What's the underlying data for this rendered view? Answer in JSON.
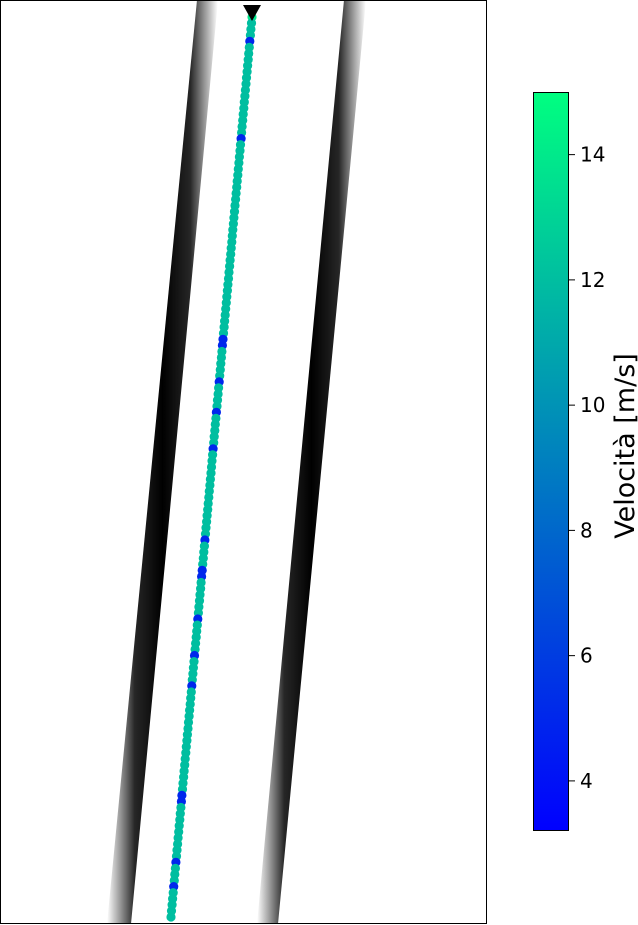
{
  "chart_data": {
    "type": "scatter",
    "title": "",
    "xlabel": "",
    "ylabel": "",
    "axes_visible": false,
    "background": "track image with two dark lane lines",
    "marker": "circle",
    "start_marker": "black downward triangle at the first point",
    "colormap": "winter",
    "colormap_colors": [
      "#0000ff",
      "#00ff80"
    ],
    "series": [
      {
        "name": "",
        "values": [
          14,
          12,
          12,
          12,
          5,
          12,
          12,
          12,
          12,
          12,
          12,
          12,
          12,
          12,
          12,
          12,
          12,
          12,
          12,
          12,
          5,
          12,
          12,
          12,
          12,
          12,
          12,
          12,
          12,
          12,
          12,
          12,
          12,
          12,
          12,
          12,
          12,
          12,
          12,
          12,
          12,
          12,
          12,
          12,
          12,
          12,
          12,
          12,
          12,
          12,
          12,
          12,
          12,
          5,
          5,
          12,
          12,
          12,
          12,
          12,
          5,
          12,
          12,
          12,
          12,
          5,
          12,
          12,
          12,
          12,
          12,
          5,
          12,
          12,
          12,
          12,
          12,
          12,
          12,
          12,
          12,
          12,
          12,
          12,
          12,
          12,
          5,
          12,
          12,
          12,
          12,
          5,
          5,
          12,
          12,
          12,
          12,
          12,
          12,
          5,
          12,
          12,
          12,
          12,
          12,
          5,
          12,
          12,
          12,
          12,
          5,
          12,
          12,
          12,
          12,
          12,
          12,
          12,
          12,
          12,
          12,
          12,
          12,
          12,
          12,
          12,
          12,
          12,
          5,
          5,
          12,
          12,
          12,
          12,
          12,
          12,
          12,
          12,
          12,
          5,
          12,
          12,
          12,
          5,
          12,
          12,
          12,
          12,
          12
        ]
      }
    ],
    "colorbar": {
      "label": "Velocità [m/s]",
      "vmin": 3.2,
      "vmax": 15,
      "ticks": [
        4,
        6,
        8,
        10,
        12,
        14
      ]
    }
  }
}
